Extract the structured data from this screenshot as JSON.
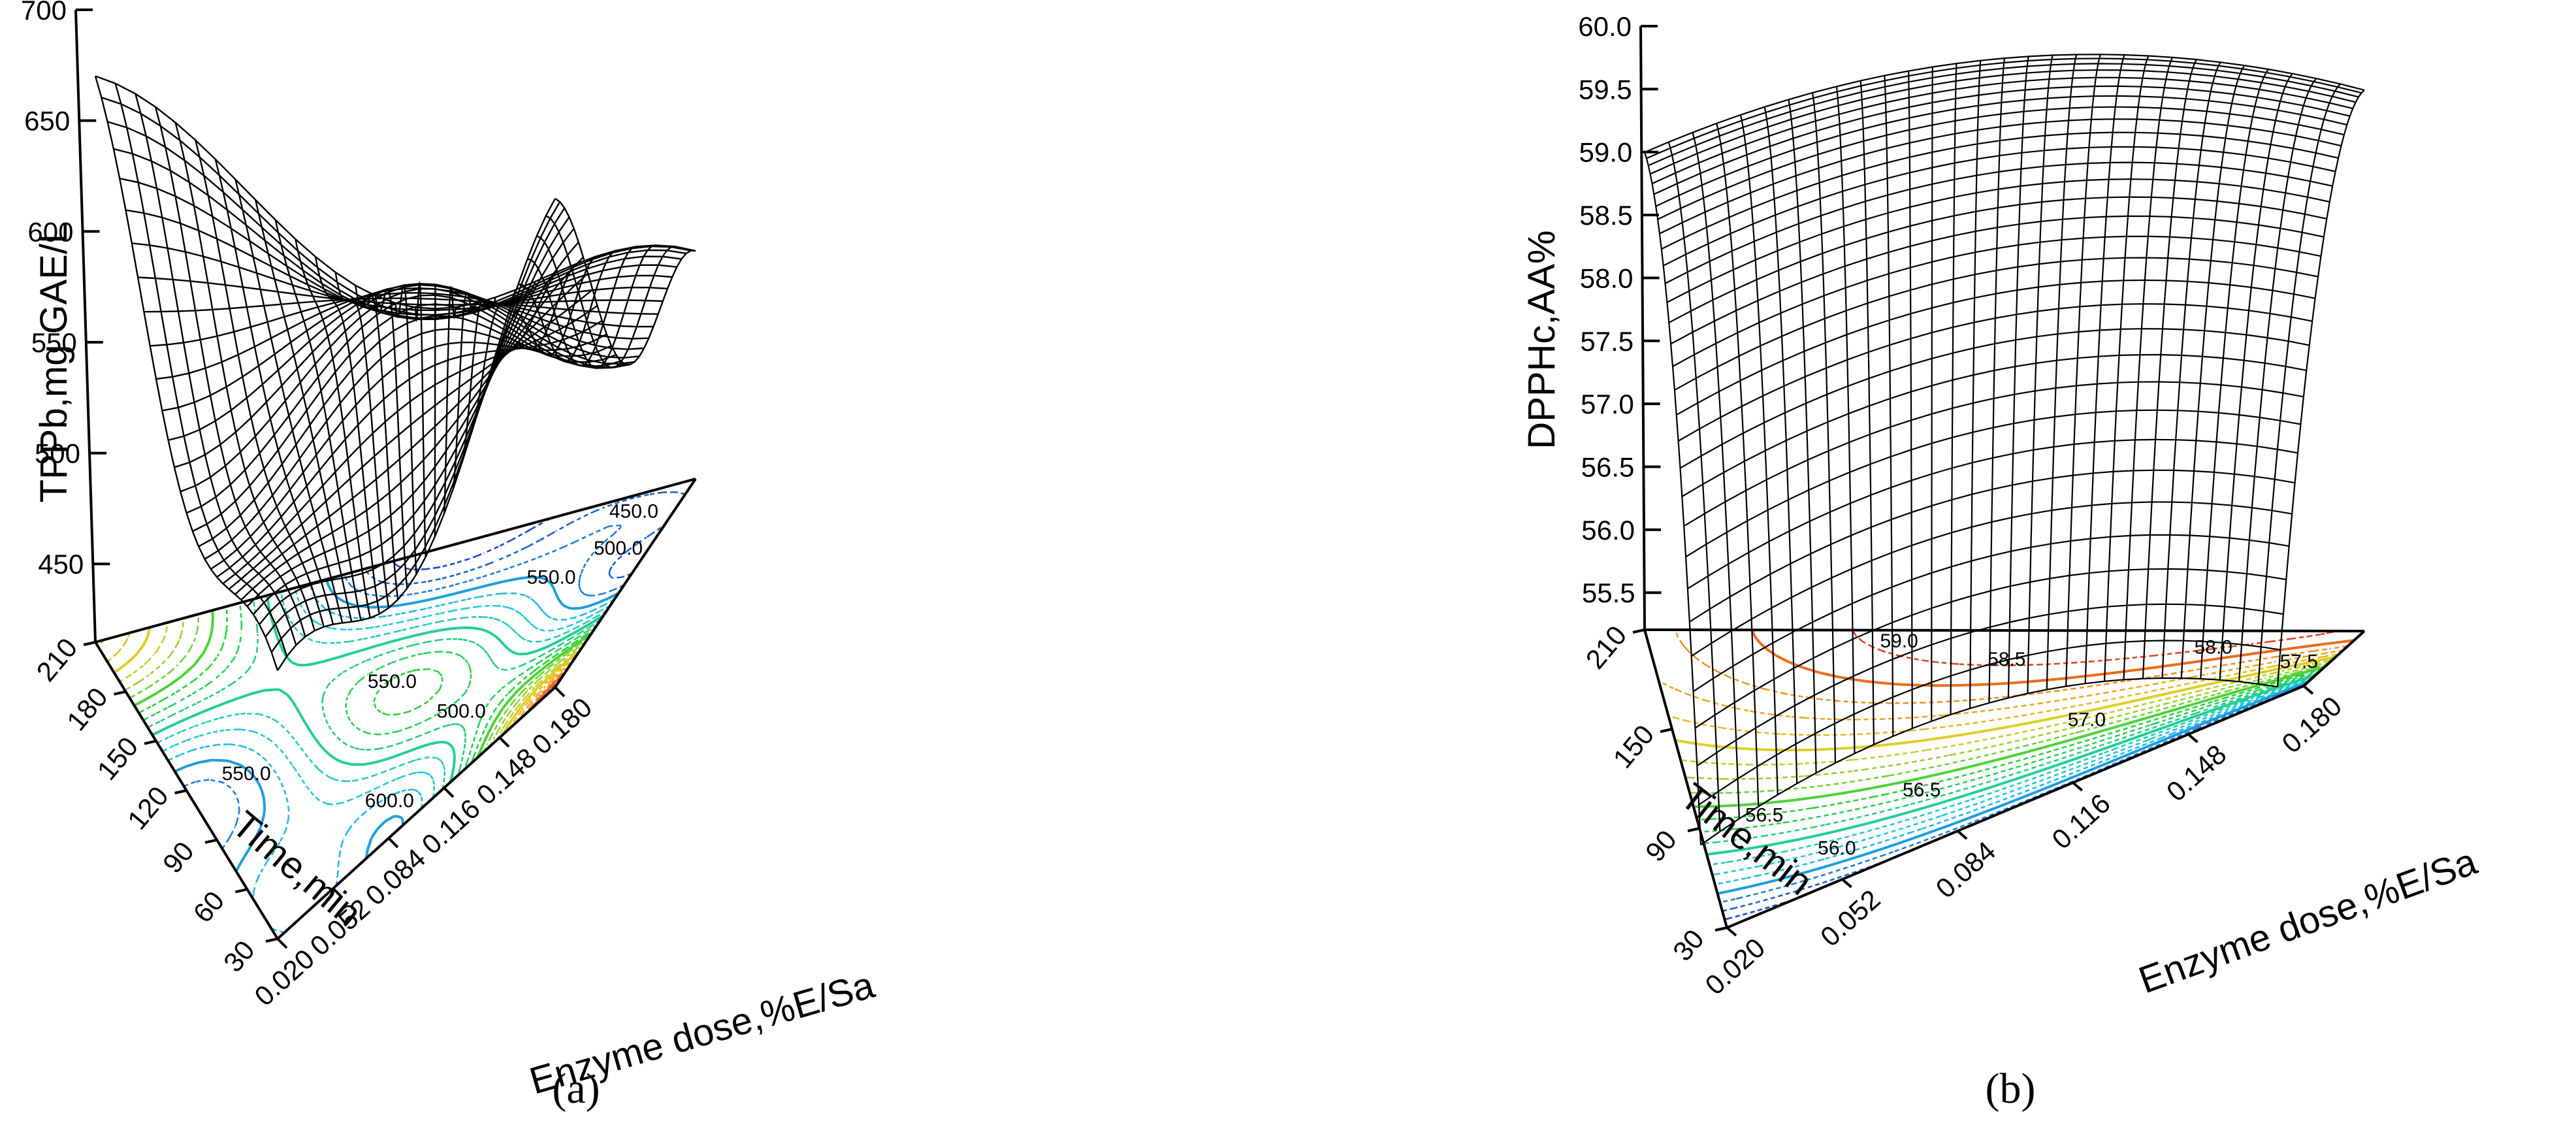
{
  "chart_data": [
    {
      "id": "a",
      "type": "surface3d",
      "caption": "(a)",
      "zlabel": "TPPb,mg GAE/L",
      "xlabel": "Enzyme dose,%E/Sa",
      "ylabel": "Time,min",
      "zticks": [
        "450",
        "500",
        "550",
        "600",
        "650",
        "700"
      ],
      "xticks": [
        "0.020",
        "0.052",
        "0.084",
        "0.116",
        "0.148",
        "0.180"
      ],
      "yticks": [
        "30",
        "60",
        "90",
        "120",
        "150",
        "180",
        "210"
      ],
      "zlim": [
        420,
        700
      ],
      "xlim": [
        0.02,
        0.18
      ],
      "ylim": [
        30,
        210
      ],
      "contour_labels": [
        "450.0",
        "500.0",
        "550.0",
        "500.0",
        "550.0",
        "550.0",
        "600.0"
      ]
    },
    {
      "id": "b",
      "type": "surface3d",
      "caption": "(b)",
      "zlabel": "DPPHc,AA%",
      "xlabel": "Enzyme dose,%E/Sa",
      "ylabel": "Time,min",
      "zticks": [
        "55.5",
        "56.0",
        "56.5",
        "57.0",
        "57.5",
        "58.0",
        "58.5",
        "59.0",
        "59.5",
        "60.0"
      ],
      "xticks": [
        "0.020",
        "0.052",
        "0.084",
        "0.116",
        "0.148",
        "0.180"
      ],
      "yticks": [
        "30",
        "90",
        "150",
        "210"
      ],
      "zlim": [
        55.2,
        60.0
      ],
      "xlim": [
        0.02,
        0.18
      ],
      "ylim": [
        30,
        210
      ],
      "contour_labels": [
        "59.0",
        "58.5",
        "58.0",
        "57.5",
        "57.0",
        "56.5",
        "56.0",
        "56.5"
      ]
    }
  ]
}
